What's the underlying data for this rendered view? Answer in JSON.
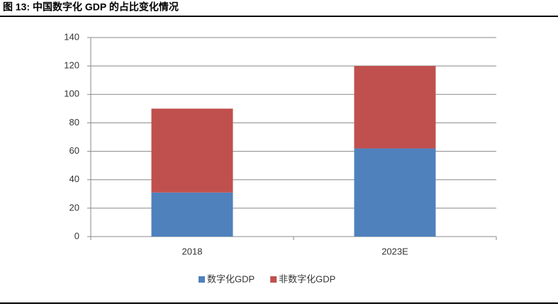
{
  "chart_data": {
    "type": "stacked-bar",
    "title": "图 13:  中国数字化 GDP 的占比变化情况",
    "categories": [
      "2018",
      "2023E"
    ],
    "series": [
      {
        "name": "数字化GDP",
        "color": "#4f81bd",
        "values": [
          31,
          62
        ]
      },
      {
        "name": "非数字化GDP",
        "color": "#c0504d",
        "values": [
          59,
          58
        ]
      }
    ],
    "ylim": [
      0,
      140
    ],
    "yticks": [
      0,
      20,
      40,
      60,
      80,
      100,
      120,
      140
    ],
    "grid": true,
    "legend": "bottom"
  }
}
